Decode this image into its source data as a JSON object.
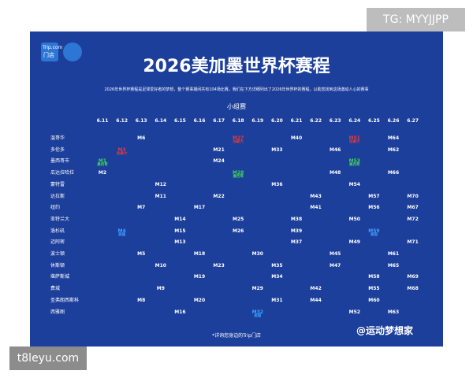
{
  "watermark_top": "TG: MYYJJPP",
  "watermark_bottom": "t8leyu.com",
  "watermark_author": "@运动梦想家",
  "header": {
    "logo": "Trip.com",
    "logo_sub": "门店",
    "title": "2026美加墨世界杯赛程",
    "subtitle": "2026年世界杯赛程是足球爱好者的梦想，整个赛事期间共有104场比赛，我们在下方详细列出了2026年世界杯的赛程，以助您找到这场激动人心的赛事",
    "stage": "小组赛"
  },
  "table": {
    "dates": [
      "6.11",
      "6.12",
      "6.13",
      "6.14",
      "6.15",
      "6.16",
      "6.17",
      "6.18",
      "6.19",
      "6.20",
      "6.21",
      "6.22",
      "6.23",
      "6.24",
      "6.25",
      "6.26",
      "6.27"
    ],
    "rows": [
      {
        "city": "温哥华",
        "cells": [
          null,
          null,
          {
            "match": "M6"
          },
          null,
          null,
          null,
          null,
          {
            "match": "M27",
            "team": "加拿大",
            "color": "#e23a3a"
          },
          null,
          null,
          {
            "match": "M40"
          },
          null,
          null,
          {
            "match": "M51",
            "team": "加拿大",
            "color": "#e23a3a"
          },
          null,
          {
            "match": "M64"
          },
          null
        ]
      },
      {
        "city": "多伦多",
        "cells": [
          null,
          {
            "match": "M3",
            "team": "加拿大",
            "color": "#e23a3a"
          },
          null,
          null,
          null,
          null,
          {
            "match": "M21"
          },
          null,
          null,
          {
            "match": "M33"
          },
          null,
          null,
          {
            "match": "M46"
          },
          null,
          null,
          {
            "match": "M62"
          },
          null
        ]
      },
      {
        "city": "墨西哥市",
        "cells": [
          {
            "match": "M1",
            "team": "墨西哥",
            "color": "#3ecf5a"
          },
          null,
          null,
          null,
          null,
          null,
          {
            "match": "M24"
          },
          null,
          null,
          null,
          null,
          null,
          null,
          {
            "match": "M53",
            "team": "墨西哥",
            "color": "#3ecf5a"
          },
          null,
          null,
          null
        ]
      },
      {
        "city": "瓜达拉哈拉",
        "cells": [
          {
            "match": "M2"
          },
          null,
          null,
          null,
          null,
          null,
          null,
          {
            "match": "M28",
            "team": "墨西哥",
            "color": "#3ecf5a"
          },
          null,
          null,
          null,
          null,
          {
            "match": "M48"
          },
          null,
          null,
          {
            "match": "M66"
          },
          null
        ]
      },
      {
        "city": "蒙特雷",
        "cells": [
          null,
          null,
          null,
          {
            "match": "M12"
          },
          null,
          null,
          null,
          null,
          null,
          {
            "match": "M36"
          },
          null,
          null,
          null,
          {
            "match": "M54"
          },
          null,
          null,
          null
        ]
      },
      {
        "city": "达拉斯",
        "cells": [
          null,
          null,
          null,
          {
            "match": "M11"
          },
          null,
          null,
          {
            "match": "M22"
          },
          null,
          null,
          null,
          null,
          {
            "match": "M43"
          },
          null,
          null,
          {
            "match": "M57"
          },
          null,
          {
            "match": "M70"
          }
        ]
      },
      {
        "city": "纽约",
        "cells": [
          null,
          null,
          {
            "match": "M7"
          },
          null,
          null,
          {
            "match": "M17"
          },
          null,
          null,
          null,
          null,
          null,
          {
            "match": "M41"
          },
          null,
          null,
          {
            "match": "M56"
          },
          null,
          {
            "match": "M67"
          }
        ]
      },
      {
        "city": "亚特兰大",
        "cells": [
          null,
          null,
          null,
          null,
          {
            "match": "M14"
          },
          null,
          null,
          {
            "match": "M25"
          },
          null,
          null,
          {
            "match": "M38"
          },
          null,
          null,
          {
            "match": "M50"
          },
          null,
          null,
          {
            "match": "M72"
          }
        ]
      },
      {
        "city": "洛杉矶",
        "cells": [
          null,
          {
            "match": "M4",
            "team": "美国",
            "color": "#3fa0ff"
          },
          null,
          null,
          {
            "match": "M15"
          },
          null,
          null,
          {
            "match": "M26"
          },
          null,
          null,
          {
            "match": "M39"
          },
          null,
          null,
          null,
          {
            "match": "M59",
            "team": "美国",
            "color": "#3fa0ff"
          },
          null,
          null
        ]
      },
      {
        "city": "迈阿密",
        "cells": [
          null,
          null,
          null,
          null,
          {
            "match": "M13"
          },
          null,
          null,
          null,
          null,
          null,
          {
            "match": "M37"
          },
          null,
          null,
          {
            "match": "M49"
          },
          null,
          null,
          {
            "match": "M71"
          }
        ]
      },
      {
        "city": "波士顿",
        "cells": [
          null,
          null,
          {
            "match": "M5"
          },
          null,
          null,
          {
            "match": "M18"
          },
          null,
          null,
          {
            "match": "M30"
          },
          null,
          null,
          null,
          {
            "match": "M45"
          },
          null,
          null,
          {
            "match": "M61"
          },
          null
        ]
      },
      {
        "city": "休斯顿",
        "cells": [
          null,
          null,
          null,
          {
            "match": "M10"
          },
          null,
          null,
          {
            "match": "M23"
          },
          null,
          null,
          {
            "match": "M35"
          },
          null,
          null,
          {
            "match": "M47"
          },
          null,
          null,
          {
            "match": "M65"
          },
          null
        ]
      },
      {
        "city": "堪萨斯城",
        "cells": [
          null,
          null,
          null,
          null,
          null,
          {
            "match": "M19"
          },
          null,
          null,
          null,
          {
            "match": "M34"
          },
          null,
          null,
          null,
          null,
          {
            "match": "M58"
          },
          null,
          {
            "match": "M69"
          }
        ]
      },
      {
        "city": "费城",
        "cells": [
          null,
          null,
          null,
          {
            "match": "M9"
          },
          null,
          null,
          null,
          null,
          {
            "match": "M29"
          },
          null,
          null,
          {
            "match": "M42"
          },
          null,
          null,
          {
            "match": "M55"
          },
          null,
          {
            "match": "M68"
          }
        ]
      },
      {
        "city": "圣弗朗西斯科",
        "cells": [
          null,
          null,
          {
            "match": "M8"
          },
          null,
          null,
          {
            "match": "M20"
          },
          null,
          null,
          null,
          {
            "match": "M31"
          },
          null,
          {
            "match": "M44"
          },
          null,
          null,
          {
            "match": "M60"
          },
          null,
          null
        ]
      },
      {
        "city": "西雅图",
        "cells": [
          null,
          null,
          null,
          null,
          {
            "match": "M16"
          },
          null,
          null,
          null,
          {
            "match": "M32",
            "team": "美国",
            "color": "#3fa0ff"
          },
          null,
          null,
          null,
          null,
          {
            "match": "M52"
          },
          null,
          {
            "match": "M63"
          },
          null
        ]
      }
    ]
  },
  "footer": "*详询您身边的Trip门店"
}
